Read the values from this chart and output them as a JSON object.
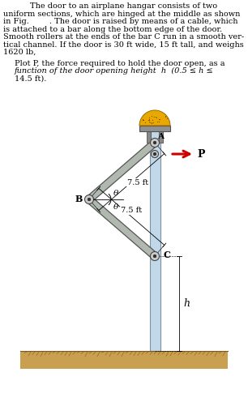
{
  "text_line1": "The door to an airplane hangar consists of two",
  "text_lines_left": [
    "uniform sections, which are hinged at the middle as shown",
    "in Fig.        . The door is raised by means of a cable, which",
    "is attached to a bar along the bottom edge of the door.",
    "Smooth rollers at the ends of the bar C run in a smooth ver-",
    "tical channel. If the door is 30 ft wide, 15 ft tall, and weighs",
    "1620 lb,"
  ],
  "plot_line1": "Plot P, the force required to hold the door open, as a",
  "plot_line2": "function of the door opening height  h  (0.5 ≤ h ≤",
  "plot_line3": "14.5 ft).",
  "label_75_top": "7.5 ft",
  "label_75_bot": "7.5 ft",
  "label_A": "A",
  "label_B": "B",
  "label_C": "C",
  "label_theta1": "θ",
  "label_theta2": "θ",
  "label_P": "P",
  "label_h": "h",
  "background_color": "#ffffff",
  "ground_color": "#c8a050",
  "beam_color_light": "#b0b8b0",
  "beam_color_dark": "#7a8a7a",
  "beam_edge_color": "#555555",
  "arrow_color": "#cc0000",
  "channel_color": "#c0d8e8",
  "channel_edge": "#8090a0",
  "hinge_face": "#cccccc",
  "hinge_edge": "#444444",
  "bracket_color": "#888888",
  "cap_color": "#e8a800",
  "cap_edge": "#9a6800",
  "plate_color": "#909090",
  "plate_edge": "#505050",
  "ground_fill": "#c8a050",
  "ground_line": "#7a5820",
  "dim_color": "#000000"
}
